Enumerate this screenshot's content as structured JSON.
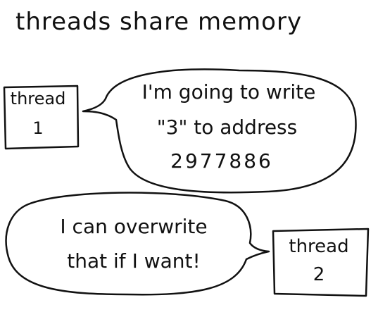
{
  "title": "threads share memory",
  "thread1": {
    "label": "thread",
    "number": "1"
  },
  "thread2": {
    "label": "thread",
    "number": "2"
  },
  "speech1": {
    "line1": "I'm going to write",
    "line2": "\"3\" to address",
    "line3": "2977886"
  },
  "speech2": {
    "line1": "I can overwrite",
    "line2": "that if I want!"
  }
}
